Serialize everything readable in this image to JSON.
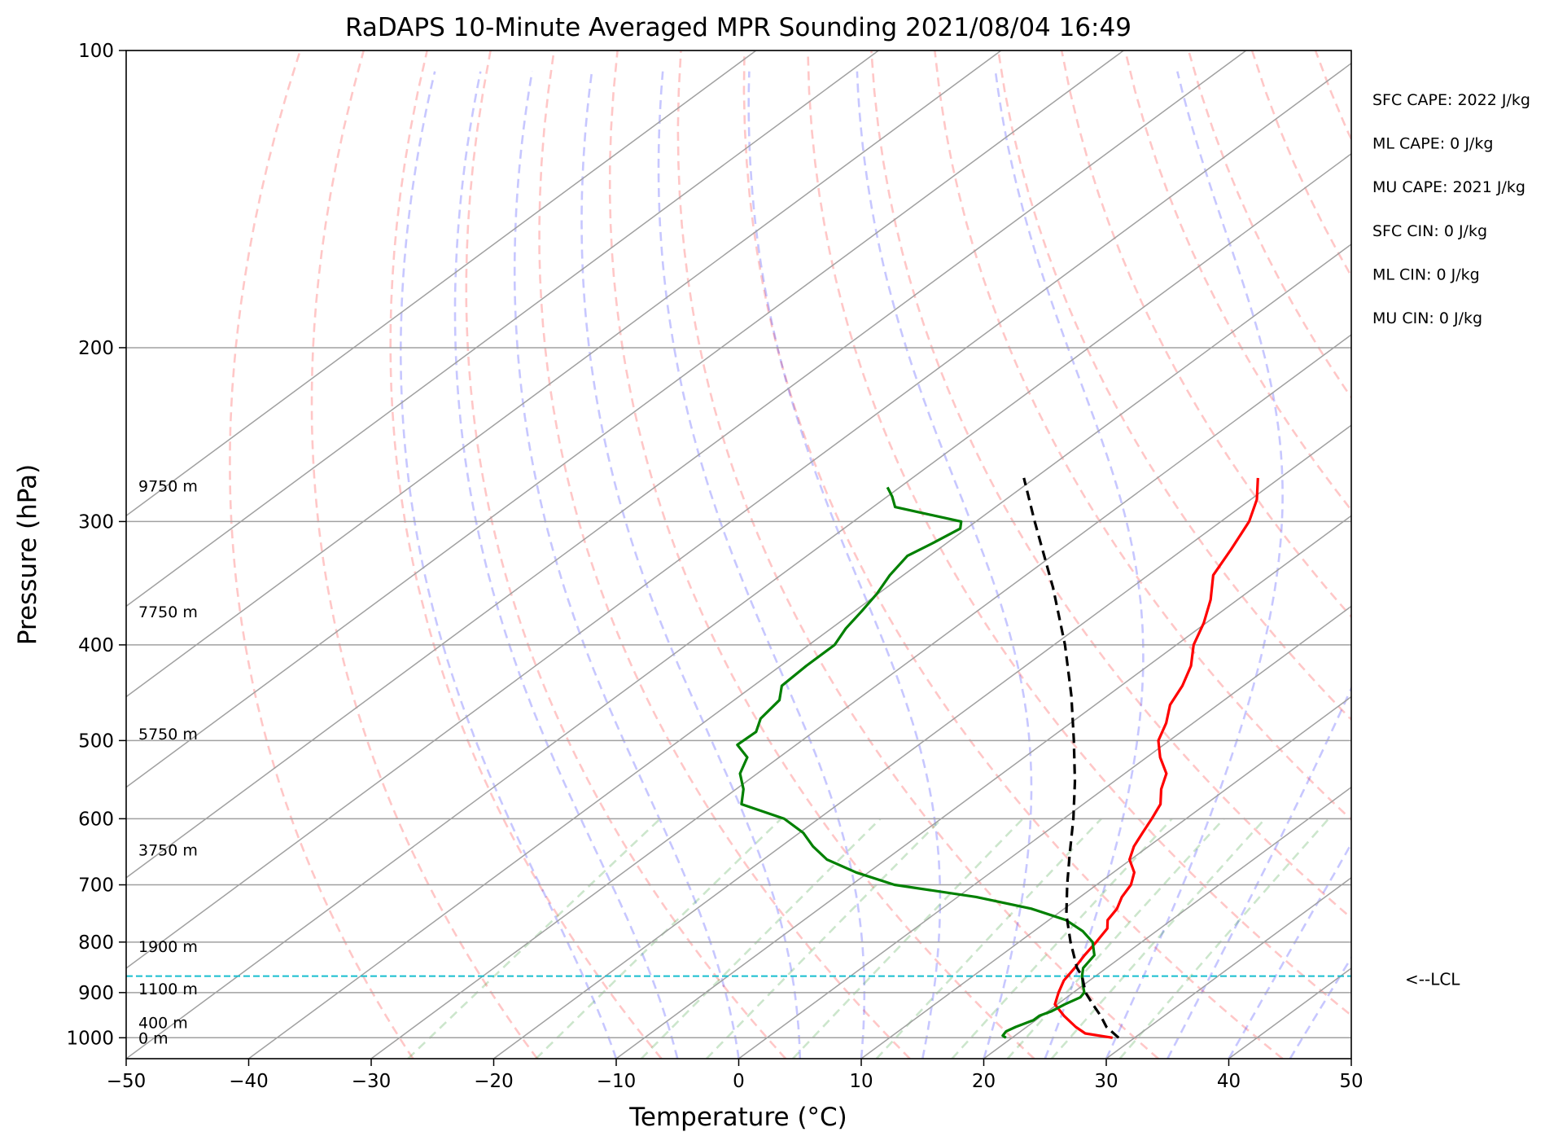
{
  "chart_data": {
    "type": "line",
    "title": "RaDAPS 10-Minute Averaged MPR Sounding 2021/08/04 16:49",
    "xlabel": "Temperature (°C)",
    "ylabel": "Pressure (hPa)",
    "xlim": [
      -50,
      50
    ],
    "ylim": [
      1050,
      100
    ],
    "y_scale": "log",
    "x_ticks": [
      "−50",
      "−40",
      "−30",
      "−20",
      "−10",
      "0",
      "10",
      "20",
      "30",
      "40",
      "50"
    ],
    "x_tick_values": [
      -50,
      -40,
      -30,
      -20,
      -10,
      0,
      10,
      20,
      30,
      40,
      50
    ],
    "y_ticks": [
      "100",
      "200",
      "300",
      "400",
      "500",
      "600",
      "700",
      "800",
      "900",
      "1000"
    ],
    "y_tick_values": [
      100,
      200,
      300,
      400,
      500,
      600,
      700,
      800,
      900,
      1000
    ],
    "grid": true,
    "isotherms": [
      -110,
      -100,
      -90,
      -80,
      -70,
      -60,
      -50,
      -40,
      -30,
      -20,
      -10,
      0,
      10,
      20,
      30,
      40,
      50
    ],
    "dry_adiabats_theta_c": [
      -30,
      -20,
      -10,
      0,
      10,
      20,
      30,
      40,
      50,
      60,
      70,
      80,
      90,
      100,
      110,
      120,
      130,
      140,
      150,
      160,
      170,
      180,
      190,
      200
    ],
    "moist_adiabats_start_c": [
      -10,
      -5,
      0,
      5,
      10,
      15,
      20,
      25,
      30,
      35,
      40,
      45
    ],
    "mixing_ratio_lines_g_per_kg": [
      0.4,
      1,
      2,
      3,
      5,
      8,
      12,
      16,
      20,
      28
    ],
    "height_labels": [
      {
        "label": "9750 m",
        "p": 276
      },
      {
        "label": "7750 m",
        "p": 370
      },
      {
        "label": "5750 m",
        "p": 492
      },
      {
        "label": "3750 m",
        "p": 645
      },
      {
        "label": "1900 m",
        "p": 808
      },
      {
        "label": "1100 m",
        "p": 892
      },
      {
        "label": "400 m",
        "p": 965
      },
      {
        "label": "0 m",
        "p": 1000
      }
    ],
    "lcl": {
      "p": 866,
      "label": "<--LCL"
    },
    "indices": [
      "SFC CAPE: 2022 J/kg",
      "ML CAPE: 0 J/kg",
      "MU CAPE: 2021 J/kg",
      "SFC CIN: 0 J/kg",
      "ML CIN: 0 J/kg",
      "MU CIN: 0 J/kg"
    ],
    "series": [
      {
        "key": "temperature",
        "color": "#ff0000",
        "points": [
          [
            1000,
            28.2
          ],
          [
            990,
            25.5
          ],
          [
            975,
            24.0
          ],
          [
            950,
            21.8
          ],
          [
            925,
            19.8
          ],
          [
            900,
            18.8
          ],
          [
            875,
            17.9
          ],
          [
            850,
            17.4
          ],
          [
            825,
            16.8
          ],
          [
            800,
            16.3
          ],
          [
            775,
            15.7
          ],
          [
            760,
            14.8
          ],
          [
            740,
            14.3
          ],
          [
            720,
            13.4
          ],
          [
            700,
            12.8
          ],
          [
            680,
            11.7
          ],
          [
            660,
            9.9
          ],
          [
            640,
            8.8
          ],
          [
            620,
            8.0
          ],
          [
            600,
            7.2
          ],
          [
            580,
            6.3
          ],
          [
            560,
            4.7
          ],
          [
            540,
            3.4
          ],
          [
            520,
            1.1
          ],
          [
            500,
            -0.9
          ],
          [
            480,
            -2.2
          ],
          [
            460,
            -3.9
          ],
          [
            440,
            -5.0
          ],
          [
            420,
            -6.5
          ],
          [
            400,
            -8.6
          ],
          [
            380,
            -10.2
          ],
          [
            360,
            -12.2
          ],
          [
            340,
            -14.7
          ],
          [
            320,
            -16.1
          ],
          [
            300,
            -17.7
          ],
          [
            285,
            -19.5
          ],
          [
            271,
            -21.8
          ]
        ]
      },
      {
        "key": "dewpoint",
        "color": "#008000",
        "points": [
          [
            1000,
            19.5
          ],
          [
            995,
            19.0
          ],
          [
            985,
            18.8
          ],
          [
            975,
            19.1
          ],
          [
            960,
            19.8
          ],
          [
            950,
            19.8
          ],
          [
            940,
            20.3
          ],
          [
            925,
            20.6
          ],
          [
            910,
            21.1
          ],
          [
            900,
            20.9
          ],
          [
            885,
            20.0
          ],
          [
            866,
            18.9
          ],
          [
            850,
            18.1
          ],
          [
            825,
            17.6
          ],
          [
            800,
            16.0
          ],
          [
            780,
            14.0
          ],
          [
            760,
            11.4
          ],
          [
            740,
            7.3
          ],
          [
            720,
            1.5
          ],
          [
            700,
            -6.5
          ],
          [
            680,
            -11.0
          ],
          [
            660,
            -14.8
          ],
          [
            640,
            -17.4
          ],
          [
            620,
            -19.7
          ],
          [
            600,
            -22.8
          ],
          [
            580,
            -27.9
          ],
          [
            560,
            -29.4
          ],
          [
            540,
            -31.4
          ],
          [
            520,
            -32.6
          ],
          [
            505,
            -34.8
          ],
          [
            490,
            -34.7
          ],
          [
            475,
            -35.8
          ],
          [
            455,
            -36.3
          ],
          [
            440,
            -37.7
          ],
          [
            420,
            -37.9
          ],
          [
            400,
            -37.9
          ],
          [
            385,
            -38.8
          ],
          [
            370,
            -39.4
          ],
          [
            355,
            -40.1
          ],
          [
            340,
            -41.1
          ],
          [
            325,
            -41.8
          ],
          [
            315,
            -41.1
          ],
          [
            305,
            -40.5
          ],
          [
            300,
            -41.2
          ],
          [
            290,
            -48.2
          ],
          [
            283,
            -49.6
          ],
          [
            277,
            -51.0
          ]
        ]
      },
      {
        "key": "parcel",
        "color": "#000000",
        "points": [
          [
            1000,
            28.7
          ],
          [
            975,
            26.5
          ],
          [
            950,
            24.8
          ],
          [
            925,
            22.9
          ],
          [
            900,
            21.0
          ],
          [
            866,
            18.9
          ],
          [
            850,
            17.6
          ],
          [
            800,
            14.2
          ],
          [
            750,
            10.8
          ],
          [
            700,
            7.6
          ],
          [
            650,
            4.3
          ],
          [
            600,
            0.8
          ],
          [
            550,
            -3.2
          ],
          [
            500,
            -7.8
          ],
          [
            450,
            -13.0
          ],
          [
            400,
            -19.1
          ],
          [
            350,
            -26.4
          ],
          [
            300,
            -35.2
          ],
          [
            271,
            -40.9
          ]
        ]
      }
    ]
  }
}
